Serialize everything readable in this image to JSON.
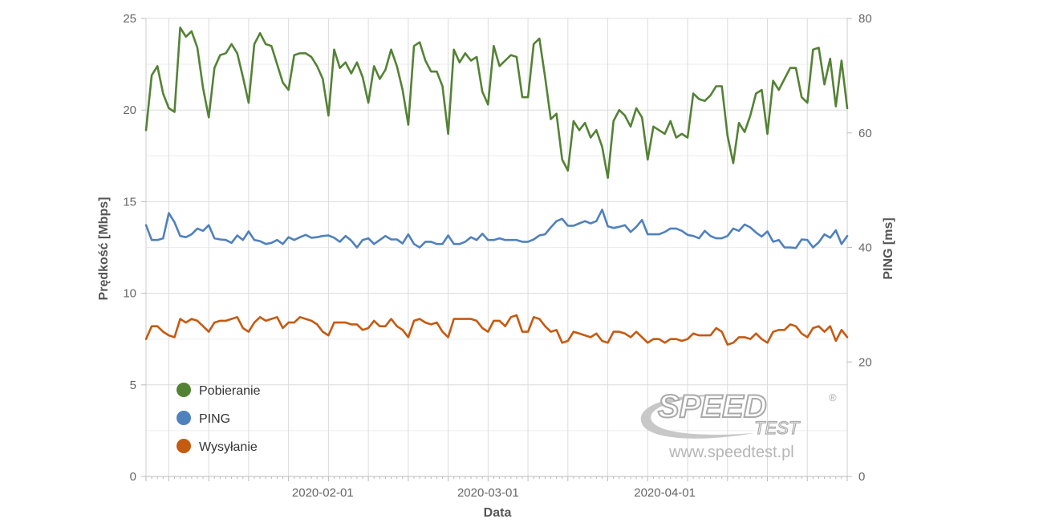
{
  "chart_data": {
    "type": "line",
    "title": "",
    "xlabel": "Data",
    "ylabel": "Prędkość [Mbps]",
    "y2label": "PING [ms]",
    "ylim": [
      0,
      25
    ],
    "y2lim": [
      0,
      80
    ],
    "yticks": [
      0,
      5,
      10,
      15,
      20,
      25
    ],
    "y2ticks": [
      0,
      20,
      40,
      60,
      80
    ],
    "x_start": "2020-01-01",
    "x_end": "2020-04-30",
    "xtick_labels": [
      "2020-02-01",
      "2020-03-01",
      "2020-04-01"
    ],
    "xtick_days": [
      31,
      60,
      91
    ],
    "series": [
      {
        "name": "Pobieranie",
        "axis": "left",
        "color": "#548235",
        "values": [
          18.9,
          21.9,
          22.4,
          20.9,
          20.1,
          19.9,
          24.5,
          24.0,
          24.3,
          23.4,
          21.2,
          19.6,
          22.3,
          23.0,
          23.1,
          23.6,
          23.1,
          21.8,
          20.4,
          23.6,
          24.2,
          23.6,
          23.5,
          22.5,
          21.5,
          21.1,
          23.0,
          23.1,
          23.1,
          22.9,
          22.4,
          21.7,
          19.7,
          23.3,
          22.3,
          22.6,
          22.0,
          22.6,
          21.8,
          20.4,
          22.4,
          21.7,
          22.2,
          23.3,
          22.4,
          21.1,
          19.2,
          23.5,
          23.7,
          22.7,
          22.1,
          22.1,
          21.3,
          18.7,
          23.3,
          22.6,
          23.1,
          22.7,
          22.9,
          21.0,
          20.3,
          23.5,
          22.4,
          22.7,
          23.0,
          22.9,
          20.7,
          20.7,
          23.6,
          23.9,
          21.8,
          19.5,
          19.8,
          17.3,
          16.7,
          19.4,
          18.9,
          19.3,
          18.5,
          18.9,
          18.0,
          16.3,
          19.4,
          20.0,
          19.7,
          19.1,
          20.1,
          19.6,
          17.3,
          19.1,
          18.9,
          18.7,
          19.4,
          18.5,
          18.7,
          18.5,
          20.9,
          20.6,
          20.5,
          20.8,
          21.3,
          21.3,
          18.6,
          17.1,
          19.3,
          18.8,
          19.7,
          20.9,
          21.1,
          18.7,
          21.6,
          21.1,
          21.7,
          22.3,
          22.3,
          20.7,
          20.4,
          23.3,
          23.4,
          21.4,
          22.8,
          20.2,
          22.7,
          20.1
        ]
      },
      {
        "name": "PING",
        "axis": "right",
        "color": "#4f81bd",
        "values": [
          43.9,
          41.3,
          41.3,
          41.6,
          46.0,
          44.4,
          42.0,
          41.8,
          42.3,
          43.3,
          42.9,
          43.9,
          41.6,
          41.4,
          41.3,
          40.8,
          42.1,
          41.3,
          42.8,
          41.3,
          41.1,
          40.6,
          40.8,
          41.3,
          40.6,
          41.8,
          41.3,
          41.8,
          42.2,
          41.7,
          41.8,
          42.0,
          42.1,
          41.7,
          41.0,
          42.0,
          41.2,
          40.0,
          41.3,
          41.6,
          40.6,
          41.3,
          42.0,
          41.4,
          41.4,
          40.7,
          42.3,
          40.6,
          40.0,
          41.0,
          41.0,
          40.6,
          40.6,
          42.1,
          40.6,
          40.6,
          41.0,
          41.8,
          41.3,
          42.4,
          41.3,
          41.3,
          41.6,
          41.3,
          41.3,
          41.3,
          41.0,
          41.0,
          41.4,
          42.1,
          42.3,
          43.5,
          44.6,
          45.0,
          43.8,
          43.8,
          44.2,
          44.6,
          44.2,
          44.6,
          46.6,
          43.7,
          43.4,
          43.6,
          43.9,
          42.7,
          43.6,
          44.8,
          42.3,
          42.3,
          42.3,
          42.7,
          43.3,
          43.3,
          42.9,
          42.2,
          42.0,
          41.6,
          42.9,
          42.0,
          41.6,
          41.6,
          42.0,
          43.3,
          42.9,
          44.0,
          43.5,
          42.6,
          41.9,
          42.8,
          41.0,
          41.3,
          40.0,
          40.0,
          39.9,
          41.4,
          41.3,
          40.0,
          40.9,
          42.3,
          41.7,
          43.0,
          40.6,
          42.0
        ]
      },
      {
        "name": "Wysyłanie",
        "axis": "left",
        "color": "#c55a11",
        "values": [
          7.5,
          8.2,
          8.2,
          7.9,
          7.7,
          7.6,
          8.6,
          8.4,
          8.6,
          8.5,
          8.2,
          7.9,
          8.4,
          8.5,
          8.5,
          8.6,
          8.7,
          8.1,
          7.9,
          8.4,
          8.7,
          8.5,
          8.6,
          8.7,
          8.1,
          8.4,
          8.4,
          8.7,
          8.6,
          8.5,
          8.3,
          7.9,
          7.7,
          8.4,
          8.4,
          8.4,
          8.3,
          8.3,
          8.0,
          8.1,
          8.5,
          8.2,
          8.2,
          8.6,
          8.2,
          8.0,
          7.6,
          8.5,
          8.6,
          8.4,
          8.3,
          8.4,
          7.9,
          7.6,
          8.6,
          8.6,
          8.6,
          8.6,
          8.5,
          8.1,
          7.9,
          8.5,
          8.5,
          8.2,
          8.7,
          8.8,
          7.9,
          7.9,
          8.7,
          8.6,
          8.2,
          7.9,
          8.0,
          7.3,
          7.4,
          7.9,
          7.8,
          7.7,
          7.6,
          7.8,
          7.4,
          7.3,
          7.9,
          7.9,
          7.8,
          7.6,
          7.9,
          7.6,
          7.3,
          7.5,
          7.5,
          7.3,
          7.5,
          7.5,
          7.4,
          7.5,
          7.8,
          7.7,
          7.7,
          7.7,
          8.1,
          7.9,
          7.2,
          7.3,
          7.6,
          7.6,
          7.5,
          7.8,
          7.5,
          7.3,
          7.9,
          8.0,
          8.0,
          8.3,
          8.2,
          7.8,
          7.6,
          8.1,
          8.2,
          7.9,
          8.2,
          7.4,
          8.0,
          7.6
        ]
      }
    ]
  },
  "watermark": {
    "logo_main": "SPEED",
    "logo_sub": "TEST",
    "registered": "®",
    "url": "www.speedtest.pl"
  }
}
